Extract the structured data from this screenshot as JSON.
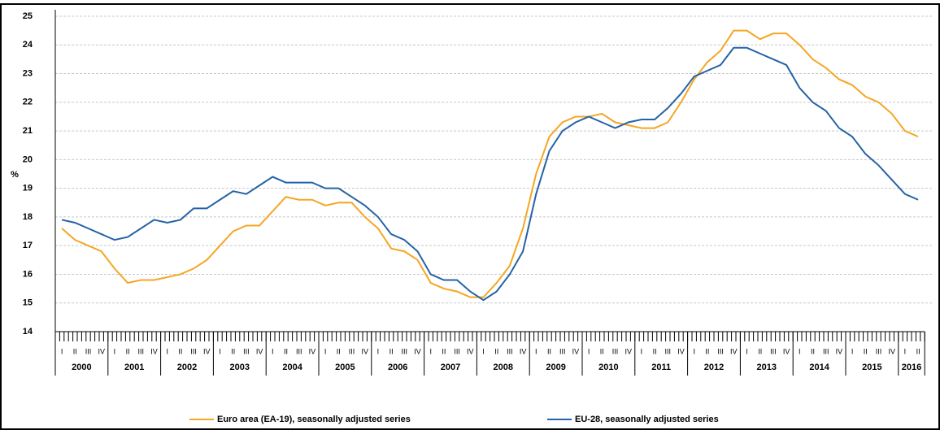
{
  "chart_data": {
    "type": "line",
    "y_label": "%",
    "years": [
      2000,
      2001,
      2002,
      2003,
      2004,
      2005,
      2006,
      2007,
      2008,
      2009,
      2010,
      2011,
      2012,
      2013,
      2014,
      2015,
      2016
    ],
    "quarter_labels": [
      "I",
      "II",
      "III",
      "IV"
    ],
    "series": [
      {
        "name": "Euro area (EA-19), seasonally adjusted series",
        "color": "#f5a623",
        "values": [
          17.6,
          17.2,
          17.0,
          16.8,
          16.2,
          15.7,
          15.8,
          15.8,
          15.9,
          16.0,
          16.2,
          16.5,
          17.0,
          17.5,
          17.7,
          17.7,
          18.2,
          18.7,
          18.6,
          18.6,
          18.4,
          18.5,
          18.5,
          18.0,
          17.6,
          16.9,
          16.8,
          16.5,
          15.7,
          15.5,
          15.4,
          15.2,
          15.2,
          15.7,
          16.3,
          17.6,
          19.5,
          20.8,
          21.3,
          21.5,
          21.5,
          21.6,
          21.3,
          21.2,
          21.1,
          21.1,
          21.3,
          22.0,
          22.8,
          23.4,
          23.8,
          24.5,
          24.5,
          24.2,
          24.4,
          24.4,
          24.0,
          23.5,
          23.2,
          22.8,
          22.6,
          22.2,
          22.0,
          21.6,
          21.0,
          20.8
        ]
      },
      {
        "name": "EU-28, seasonally adjusted series",
        "color": "#2563a6",
        "values": [
          17.9,
          17.8,
          17.6,
          17.4,
          17.2,
          17.3,
          17.6,
          17.9,
          17.8,
          17.9,
          18.3,
          18.3,
          18.6,
          18.9,
          18.8,
          19.1,
          19.4,
          19.2,
          19.2,
          19.2,
          19.0,
          19.0,
          18.7,
          18.4,
          18.0,
          17.4,
          17.2,
          16.8,
          16.0,
          15.8,
          15.8,
          15.4,
          15.1,
          15.4,
          16.0,
          16.8,
          18.8,
          20.3,
          21.0,
          21.3,
          21.5,
          21.3,
          21.1,
          21.3,
          21.4,
          21.4,
          21.8,
          22.3,
          22.9,
          23.1,
          23.3,
          23.9,
          23.9,
          23.7,
          23.5,
          23.3,
          22.5,
          22.0,
          21.7,
          21.1,
          20.8,
          20.2,
          19.8,
          19.3,
          18.8,
          18.6
        ]
      }
    ],
    "ylim": [
      14,
      25
    ],
    "yticks": [
      14,
      15,
      16,
      17,
      18,
      19,
      20,
      21,
      22,
      23,
      24,
      25
    ],
    "grid": true
  }
}
